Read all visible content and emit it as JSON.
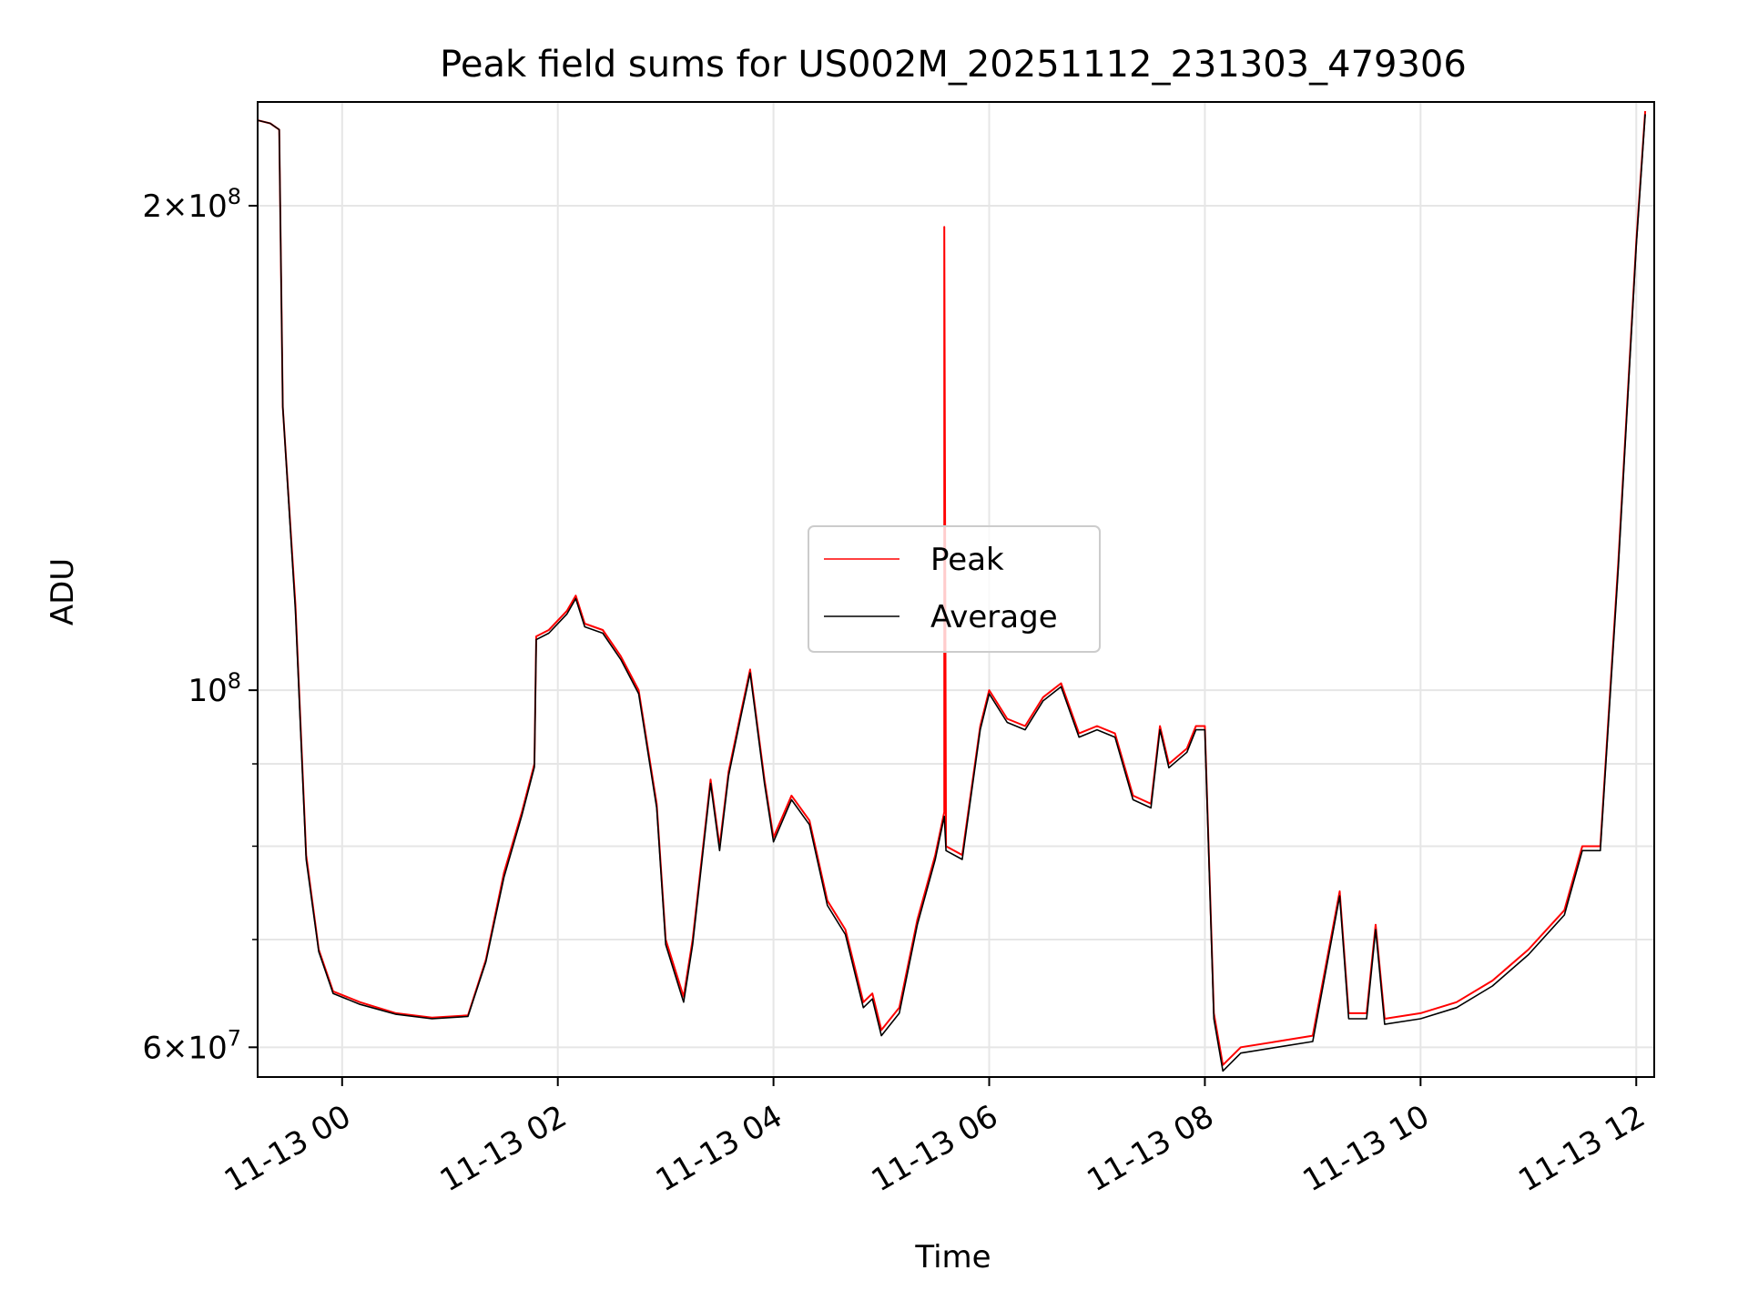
{
  "chart_data": {
    "type": "line",
    "title": "Peak field sums for US002M_20251112_231303_479306",
    "xlabel": "Time",
    "ylabel": "ADU",
    "yscale": "log",
    "grid": true,
    "legend_position": "center",
    "xlim": [
      "2025-11-12 23:13",
      "2025-11-13 12:10"
    ],
    "ylim": [
      57500000,
      232000000
    ],
    "x_ticks": [
      {
        "label": "11-13 00",
        "t": "2025-11-13 00:00"
      },
      {
        "label": "11-13 02",
        "t": "2025-11-13 02:00"
      },
      {
        "label": "11-13 04",
        "t": "2025-11-13 04:00"
      },
      {
        "label": "11-13 06",
        "t": "2025-11-13 06:00"
      },
      {
        "label": "11-13 08",
        "t": "2025-11-13 08:00"
      },
      {
        "label": "11-13 10",
        "t": "2025-11-13 10:00"
      },
      {
        "label": "11-13 12",
        "t": "2025-11-13 12:00"
      }
    ],
    "y_ticks_major": [
      {
        "value": 200000000,
        "mantissa": "2",
        "exp": "8"
      },
      {
        "value": 100000000,
        "mantissa": "",
        "exp": "8"
      },
      {
        "value": 60000000,
        "mantissa": "6",
        "exp": "7"
      }
    ],
    "y_ticks_minor": [
      70000000,
      80000000,
      90000000
    ],
    "series": [
      {
        "name": "Peak",
        "color": "#ff0000",
        "points": [
          [
            "2025-11-12 23:13",
            226000000
          ],
          [
            "2025-11-12 23:20",
            225000000
          ],
          [
            "2025-11-12 23:25",
            223000000
          ],
          [
            "2025-11-12 23:27",
            150000000
          ],
          [
            "2025-11-12 23:34",
            113000000
          ],
          [
            "2025-11-12 23:40",
            79000000
          ],
          [
            "2025-11-12 23:47",
            69000000
          ],
          [
            "2025-11-12 23:55",
            65000000
          ],
          [
            "2025-11-13 00:10",
            64000000
          ],
          [
            "2025-11-13 00:30",
            63000000
          ],
          [
            "2025-11-13 00:50",
            62600000
          ],
          [
            "2025-11-13 01:10",
            62800000
          ],
          [
            "2025-11-13 01:20",
            68000000
          ],
          [
            "2025-11-13 01:30",
            77000000
          ],
          [
            "2025-11-13 01:40",
            84000000
          ],
          [
            "2025-11-13 01:47",
            90000000
          ],
          [
            "2025-11-13 01:48",
            108000000
          ],
          [
            "2025-11-13 01:55",
            109000000
          ],
          [
            "2025-11-13 02:05",
            112000000
          ],
          [
            "2025-11-13 02:10",
            114500000
          ],
          [
            "2025-11-13 02:15",
            110000000
          ],
          [
            "2025-11-13 02:25",
            109000000
          ],
          [
            "2025-11-13 02:35",
            105000000
          ],
          [
            "2025-11-13 02:45",
            100000000
          ],
          [
            "2025-11-13 02:55",
            85000000
          ],
          [
            "2025-11-13 03:00",
            70000000
          ],
          [
            "2025-11-13 03:10",
            64500000
          ],
          [
            "2025-11-13 03:15",
            70000000
          ],
          [
            "2025-11-13 03:25",
            88000000
          ],
          [
            "2025-11-13 03:30",
            80000000
          ],
          [
            "2025-11-13 03:35",
            89000000
          ],
          [
            "2025-11-13 03:42",
            97000000
          ],
          [
            "2025-11-13 03:47",
            103000000
          ],
          [
            "2025-11-13 03:55",
            88000000
          ],
          [
            "2025-11-13 04:00",
            81000000
          ],
          [
            "2025-11-13 04:10",
            86000000
          ],
          [
            "2025-11-13 04:20",
            83000000
          ],
          [
            "2025-11-13 04:30",
            74000000
          ],
          [
            "2025-11-13 04:40",
            71000000
          ],
          [
            "2025-11-13 04:50",
            64000000
          ],
          [
            "2025-11-13 04:55",
            64800000
          ],
          [
            "2025-11-13 05:00",
            61500000
          ],
          [
            "2025-11-13 05:10",
            63500000
          ],
          [
            "2025-11-13 05:20",
            72000000
          ],
          [
            "2025-11-13 05:30",
            79000000
          ],
          [
            "2025-11-13 05:35",
            84000000
          ],
          [
            "2025-11-13 05:35",
            194000000
          ],
          [
            "2025-11-13 05:36",
            80000000
          ],
          [
            "2025-11-13 05:45",
            79000000
          ],
          [
            "2025-11-13 05:55",
            95000000
          ],
          [
            "2025-11-13 06:00",
            100000000
          ],
          [
            "2025-11-13 06:10",
            96000000
          ],
          [
            "2025-11-13 06:20",
            95000000
          ],
          [
            "2025-11-13 06:30",
            99000000
          ],
          [
            "2025-11-13 06:40",
            101000000
          ],
          [
            "2025-11-13 06:50",
            94000000
          ],
          [
            "2025-11-13 07:00",
            95000000
          ],
          [
            "2025-11-13 07:10",
            94000000
          ],
          [
            "2025-11-13 07:20",
            86000000
          ],
          [
            "2025-11-13 07:30",
            85000000
          ],
          [
            "2025-11-13 07:35",
            95000000
          ],
          [
            "2025-11-13 07:40",
            90000000
          ],
          [
            "2025-11-13 07:50",
            92000000
          ],
          [
            "2025-11-13 07:55",
            95000000
          ],
          [
            "2025-11-13 08:00",
            95000000
          ],
          [
            "2025-11-13 08:05",
            63000000
          ],
          [
            "2025-11-13 08:10",
            58500000
          ],
          [
            "2025-11-13 08:20",
            60000000
          ],
          [
            "2025-11-13 08:40",
            60500000
          ],
          [
            "2025-11-13 09:00",
            61000000
          ],
          [
            "2025-11-13 09:15",
            75000000
          ],
          [
            "2025-11-13 09:20",
            63000000
          ],
          [
            "2025-11-13 09:30",
            63000000
          ],
          [
            "2025-11-13 09:35",
            71500000
          ],
          [
            "2025-11-13 09:40",
            62500000
          ],
          [
            "2025-11-13 10:00",
            63000000
          ],
          [
            "2025-11-13 10:20",
            64000000
          ],
          [
            "2025-11-13 10:40",
            66000000
          ],
          [
            "2025-11-13 11:00",
            69000000
          ],
          [
            "2025-11-13 11:20",
            73000000
          ],
          [
            "2025-11-13 11:30",
            80000000
          ],
          [
            "2025-11-13 11:40",
            80000000
          ],
          [
            "2025-11-13 11:50",
            120000000
          ],
          [
            "2025-11-13 12:00",
            190000000
          ],
          [
            "2025-11-13 12:05",
            229000000
          ]
        ]
      },
      {
        "name": "Average",
        "color": "#000000",
        "points": [
          [
            "2025-11-12 23:13",
            226000000
          ],
          [
            "2025-11-12 23:20",
            225000000
          ],
          [
            "2025-11-12 23:25",
            223000000
          ],
          [
            "2025-11-12 23:27",
            150000000
          ],
          [
            "2025-11-12 23:34",
            112000000
          ],
          [
            "2025-11-12 23:40",
            78500000
          ],
          [
            "2025-11-12 23:47",
            68800000
          ],
          [
            "2025-11-12 23:55",
            64800000
          ],
          [
            "2025-11-13 00:10",
            63800000
          ],
          [
            "2025-11-13 00:30",
            62900000
          ],
          [
            "2025-11-13 00:50",
            62500000
          ],
          [
            "2025-11-13 01:10",
            62700000
          ],
          [
            "2025-11-13 01:20",
            67800000
          ],
          [
            "2025-11-13 01:30",
            76500000
          ],
          [
            "2025-11-13 01:40",
            83600000
          ],
          [
            "2025-11-13 01:47",
            89600000
          ],
          [
            "2025-11-13 01:48",
            107500000
          ],
          [
            "2025-11-13 01:55",
            108500000
          ],
          [
            "2025-11-13 02:05",
            111500000
          ],
          [
            "2025-11-13 02:10",
            114000000
          ],
          [
            "2025-11-13 02:15",
            109500000
          ],
          [
            "2025-11-13 02:25",
            108500000
          ],
          [
            "2025-11-13 02:35",
            104500000
          ],
          [
            "2025-11-13 02:45",
            99500000
          ],
          [
            "2025-11-13 02:55",
            84500000
          ],
          [
            "2025-11-13 03:00",
            69500000
          ],
          [
            "2025-11-13 03:10",
            64000000
          ],
          [
            "2025-11-13 03:15",
            69500000
          ],
          [
            "2025-11-13 03:25",
            87500000
          ],
          [
            "2025-11-13 03:30",
            79500000
          ],
          [
            "2025-11-13 03:35",
            88500000
          ],
          [
            "2025-11-13 03:42",
            96500000
          ],
          [
            "2025-11-13 03:47",
            102500000
          ],
          [
            "2025-11-13 03:55",
            87500000
          ],
          [
            "2025-11-13 04:00",
            80500000
          ],
          [
            "2025-11-13 04:10",
            85500000
          ],
          [
            "2025-11-13 04:20",
            82500000
          ],
          [
            "2025-11-13 04:30",
            73500000
          ],
          [
            "2025-11-13 04:40",
            70500000
          ],
          [
            "2025-11-13 04:50",
            63500000
          ],
          [
            "2025-11-13 04:55",
            64300000
          ],
          [
            "2025-11-13 05:00",
            61000000
          ],
          [
            "2025-11-13 05:10",
            63000000
          ],
          [
            "2025-11-13 05:20",
            71500000
          ],
          [
            "2025-11-13 05:30",
            78500000
          ],
          [
            "2025-11-13 05:35",
            83500000
          ],
          [
            "2025-11-13 05:36",
            79500000
          ],
          [
            "2025-11-13 05:45",
            78500000
          ],
          [
            "2025-11-13 05:55",
            94500000
          ],
          [
            "2025-11-13 06:00",
            99500000
          ],
          [
            "2025-11-13 06:10",
            95500000
          ],
          [
            "2025-11-13 06:20",
            94500000
          ],
          [
            "2025-11-13 06:30",
            98500000
          ],
          [
            "2025-11-13 06:40",
            100500000
          ],
          [
            "2025-11-13 06:50",
            93500000
          ],
          [
            "2025-11-13 07:00",
            94500000
          ],
          [
            "2025-11-13 07:10",
            93500000
          ],
          [
            "2025-11-13 07:20",
            85500000
          ],
          [
            "2025-11-13 07:30",
            84500000
          ],
          [
            "2025-11-13 07:35",
            94500000
          ],
          [
            "2025-11-13 07:40",
            89500000
          ],
          [
            "2025-11-13 07:50",
            91500000
          ],
          [
            "2025-11-13 07:55",
            94500000
          ],
          [
            "2025-11-13 08:00",
            94500000
          ],
          [
            "2025-11-13 08:05",
            62500000
          ],
          [
            "2025-11-13 08:10",
            58000000
          ],
          [
            "2025-11-13 08:20",
            59500000
          ],
          [
            "2025-11-13 08:40",
            60000000
          ],
          [
            "2025-11-13 09:00",
            60500000
          ],
          [
            "2025-11-13 09:15",
            74500000
          ],
          [
            "2025-11-13 09:20",
            62500000
          ],
          [
            "2025-11-13 09:30",
            62500000
          ],
          [
            "2025-11-13 09:35",
            71000000
          ],
          [
            "2025-11-13 09:40",
            62000000
          ],
          [
            "2025-11-13 10:00",
            62500000
          ],
          [
            "2025-11-13 10:20",
            63500000
          ],
          [
            "2025-11-13 10:40",
            65500000
          ],
          [
            "2025-11-13 11:00",
            68500000
          ],
          [
            "2025-11-13 11:20",
            72500000
          ],
          [
            "2025-11-13 11:30",
            79500000
          ],
          [
            "2025-11-13 11:40",
            79500000
          ],
          [
            "2025-11-13 11:50",
            119000000
          ],
          [
            "2025-11-13 12:00",
            189000000
          ],
          [
            "2025-11-13 12:05",
            228000000
          ]
        ]
      }
    ]
  }
}
